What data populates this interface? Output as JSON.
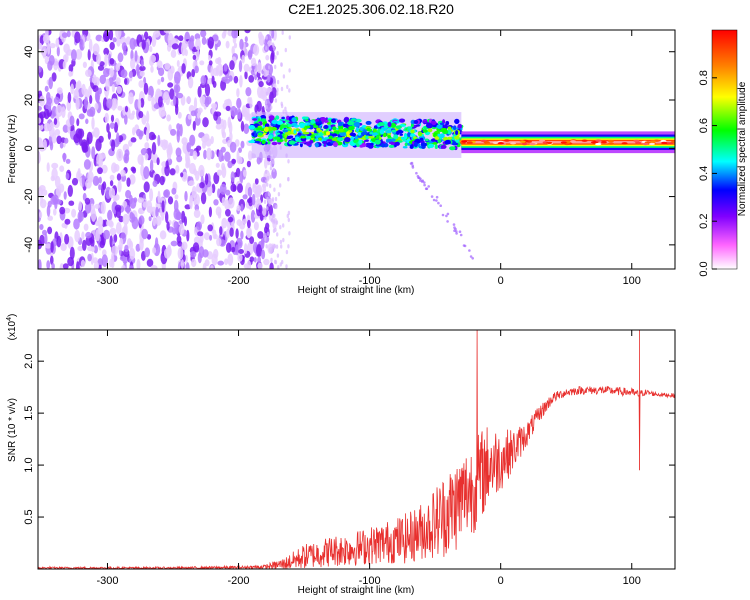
{
  "page_title": "C2E1.2025.306.02.18.R20",
  "chart_data": [
    {
      "type": "heatmap",
      "title": "C2E1.2025.306.02.18.R20",
      "xlabel": "Height of straight line (km)",
      "ylabel": "Frequency (Hz)",
      "xlim": [
        -353,
        133
      ],
      "ylim": [
        -50,
        49
      ],
      "xticks": [
        -300,
        -200,
        -100,
        0,
        100
      ],
      "xtick_labels": [
        "-300",
        "-200",
        "-100",
        "0",
        "100"
      ],
      "yticks": [
        -40,
        -20,
        0,
        20,
        40
      ],
      "ytick_labels": [
        "-40",
        "-20",
        "0",
        "20",
        "40"
      ],
      "colorbar": {
        "label": "Normalized spectral amplitude",
        "range": [
          0,
          1
        ],
        "ticks": [
          0.0,
          0.2,
          0.4,
          0.6,
          0.8
        ],
        "tick_labels": [
          "0.0",
          "0.2",
          "0.4",
          "0.6",
          "0.8"
        ]
      },
      "regions": [
        {
          "name": "broadband noise",
          "x_range": [
            -353,
            -178
          ],
          "y_range": [
            -50,
            49
          ],
          "amplitude": 0.12
        },
        {
          "name": "signal band",
          "x_range": [
            -190,
            -30
          ],
          "center_freq": 6,
          "width_hz": 8,
          "amplitude": 0.45
        },
        {
          "name": "signal band",
          "x_range": [
            -30,
            133
          ],
          "center_freq": 2.5,
          "width_hz": 3,
          "amplitude": 0.95
        },
        {
          "name": "descending streak",
          "x_range": [
            -70,
            -20
          ],
          "freq_range": [
            -5,
            -45
          ],
          "amplitude": 0.2
        }
      ],
      "colors": {
        "noise": "#7e1fff",
        "low": "#3000ff",
        "mid": "#00e676",
        "high": "#ff2010",
        "colormap": [
          "#ffffff",
          "#ff55ff",
          "#7f00ff",
          "#0000ff",
          "#00ffff",
          "#00ff00",
          "#ffff00",
          "#ff8000",
          "#ff0000"
        ]
      }
    },
    {
      "type": "line",
      "xlabel": "Height of straight line (km)",
      "ylabel": "SNR (10 * v/v)",
      "scale_label_prefix": "(x10",
      "scale_label_exp": "4",
      "scale_label_suffix": ")",
      "xlim": [
        -353,
        133
      ],
      "ylim": [
        0,
        2.3
      ],
      "xticks": [
        -300,
        -200,
        -100,
        0,
        100
      ],
      "xtick_labels": [
        "-300",
        "-200",
        "-100",
        "0",
        "100"
      ],
      "yticks": [
        0.5,
        1.0,
        1.5,
        2.0
      ],
      "ytick_labels": [
        "0.5",
        "1.0",
        "1.5",
        "2.0"
      ],
      "series": [
        {
          "name": "SNR",
          "color": "#e8302e",
          "x": [
            -353,
            -300,
            -250,
            -200,
            -180,
            -165,
            -150,
            -130,
            -110,
            -90,
            -70,
            -55,
            -45,
            -35,
            -25,
            -20,
            -15,
            -10,
            0,
            10,
            20,
            30,
            40,
            50,
            60,
            70,
            80,
            90,
            100,
            105,
            110,
            120,
            133
          ],
          "values": [
            0.01,
            0.01,
            0.01,
            0.015,
            0.02,
            0.05,
            0.12,
            0.17,
            0.2,
            0.25,
            0.3,
            0.4,
            0.5,
            0.6,
            0.75,
            0.8,
            0.9,
            1.0,
            1.05,
            1.15,
            1.3,
            1.5,
            1.65,
            1.7,
            1.72,
            1.72,
            1.72,
            1.71,
            1.7,
            1.68,
            1.7,
            1.68,
            1.67
          ],
          "spikes": [
            {
              "x": -18,
              "y": 2.3
            },
            {
              "x": 106,
              "y": 2.3
            },
            {
              "x": 106,
              "y": 0.95
            }
          ],
          "noise_amplitude": [
            0.01,
            0.01,
            0.01,
            0.015,
            0.02,
            0.06,
            0.12,
            0.15,
            0.17,
            0.2,
            0.25,
            0.3,
            0.4,
            0.45,
            0.45,
            0.45,
            0.45,
            0.4,
            0.3,
            0.2,
            0.12,
            0.08,
            0.05,
            0.04,
            0.04,
            0.04,
            0.04,
            0.04,
            0.04,
            0.04,
            0.03,
            0.02,
            0.02
          ]
        }
      ]
    }
  ]
}
